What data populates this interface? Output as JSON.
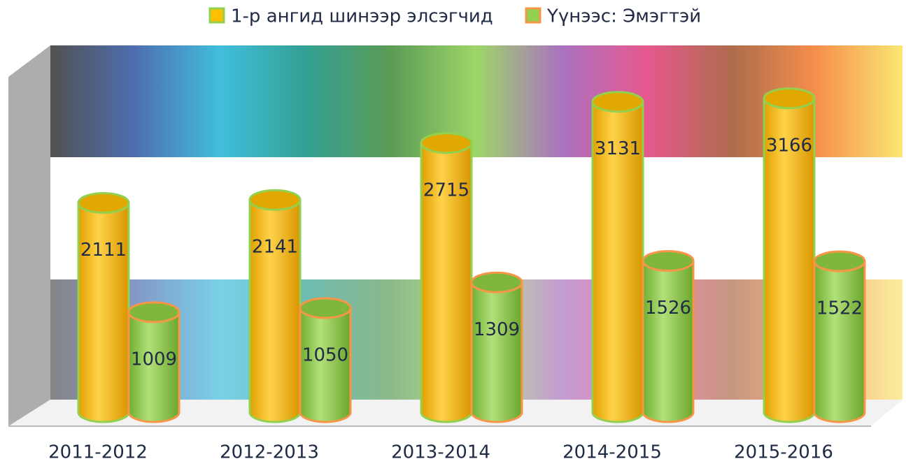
{
  "chart_data": {
    "type": "bar",
    "categories": [
      "2011-2012",
      "2012-2013",
      "2013-2014",
      "2014-2015",
      "2015-2016"
    ],
    "series": [
      {
        "name": "1-р ангид шинээр элсэгчид",
        "color": "#ffc000",
        "values": [
          2111,
          2141,
          2715,
          3131,
          3166
        ]
      },
      {
        "name": "Үүнээс: Эмэгтэй",
        "color": "#92d050",
        "values": [
          1009,
          1050,
          1309,
          1526,
          1522
        ]
      }
    ],
    "ylim": [
      0,
      3700
    ],
    "legend": "top"
  }
}
